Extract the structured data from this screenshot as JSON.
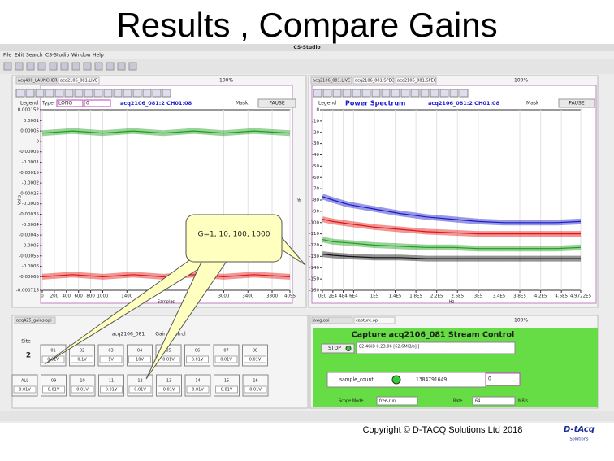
{
  "slide": {
    "title": "Results , Compare Gains",
    "copyright": "Copyright © D-TACQ Solutions Ltd 2018",
    "logo": "D-tAcq",
    "logo_sub": "Solutions"
  },
  "app": {
    "window_title": "CS-Studio",
    "menu": [
      "File",
      "Edit",
      "Search",
      "CS-Studio",
      "Window",
      "Help"
    ]
  },
  "callout": "G=1, 10, 100, 1000",
  "left_panel": {
    "tabs": [
      "acq400_LAUNCHER.opi",
      "acq2106_081.LIVE"
    ],
    "zoom": "100%",
    "legend": "Legend",
    "type_label": "Type",
    "type_value": "LONG",
    "input": "0",
    "channel": "acq2106_081:2 CH01:08",
    "mask": "Mask",
    "pause": "PAUSE",
    "chart": {
      "type": "line",
      "y_label": "Volts",
      "x_label": "Samples",
      "xlim": [
        0,
        4095
      ],
      "ylim": [
        -0.000715,
        0.000152
      ],
      "yticks": [
        0.000152,
        0.0001,
        5e-05,
        0,
        -5e-05,
        -0.0001,
        -0.00015,
        -0.0002,
        -0.00025,
        -0.0003,
        -0.00035,
        -0.0004,
        -0.00045,
        -0.0005,
        -0.00055,
        -0.0006,
        -0.00065,
        -0.000715
      ],
      "xticks": [
        0,
        200,
        400,
        600,
        800,
        1000,
        1400,
        3000,
        3400,
        3800,
        4095
      ],
      "x": [
        0,
        500,
        1000,
        1500,
        2000,
        2500,
        3000,
        3500,
        4095
      ],
      "series": [
        {
          "color": "#1c9e1c",
          "values": [
            4e-05,
            5e-05,
            4e-05,
            5e-05,
            4e-05,
            5e-05,
            4e-05,
            5e-05,
            4e-05
          ]
        },
        {
          "color": "#e01414",
          "values": [
            -0.00065,
            -0.00064,
            -0.00065,
            -0.00064,
            -0.00065,
            -0.00064,
            -0.00065,
            -0.00064,
            -0.00065
          ]
        }
      ]
    }
  },
  "right_panel": {
    "tabs": [
      "acq2106_081.LIVE",
      "acq2106_081.SPEC",
      "acq2106_081.SPEC"
    ],
    "zoom": "100%",
    "legend": "Legend",
    "title": "Power Spectrum",
    "channel": "acq2106_081:2 CH01:08",
    "mask": "Mask",
    "pause": "PAUSE",
    "chart": {
      "type": "line",
      "y_label": "dB",
      "x_label": "Hz",
      "xlim": [
        0,
        497220
      ],
      "ylim": [
        -160,
        0
      ],
      "yticks": [
        0,
        -10,
        -20,
        -30,
        -40,
        -50,
        -60,
        -70,
        -80,
        -90,
        -100,
        -110,
        -120,
        -130,
        -140,
        -150,
        -160
      ],
      "xticks": [
        {
          "value": 0,
          "label": "0E0"
        },
        {
          "value": 20000,
          "label": "2E4"
        },
        {
          "value": 40000,
          "label": "4E4"
        },
        {
          "value": 60000,
          "label": "6E4"
        },
        {
          "value": 100000,
          "label": "1E5"
        },
        {
          "value": 140000,
          "label": "1.4E5"
        },
        {
          "value": 180000,
          "label": "1.8E5"
        },
        {
          "value": 220000,
          "label": "2.2E5"
        },
        {
          "value": 260000,
          "label": "2.6E5"
        },
        {
          "value": 300000,
          "label": "3E5"
        },
        {
          "value": 340000,
          "label": "3.4E5"
        },
        {
          "value": 380000,
          "label": "3.8E5"
        },
        {
          "value": 420000,
          "label": "4.2E5"
        },
        {
          "value": 460000,
          "label": "4.6E5"
        },
        {
          "value": 497220,
          "label": "4.9722E5"
        }
      ],
      "x": [
        0,
        20000,
        50000,
        100000,
        150000,
        200000,
        250000,
        300000,
        350000,
        400000,
        450000,
        497220
      ],
      "series": [
        {
          "color": "#1a1ac8",
          "values": [
            -77,
            -80,
            -84,
            -88,
            -92,
            -95,
            -97,
            -99,
            -100,
            -100,
            -100,
            -99
          ]
        },
        {
          "color": "#e01414",
          "values": [
            -97,
            -99,
            -101,
            -104,
            -106,
            -108,
            -109,
            -110,
            -110,
            -110,
            -110,
            -110
          ]
        },
        {
          "color": "#1c9e1c",
          "values": [
            -115,
            -117,
            -118,
            -120,
            -121,
            -122,
            -122,
            -123,
            -123,
            -123,
            -123,
            -122
          ]
        },
        {
          "color": "#111111",
          "values": [
            -128,
            -129,
            -130,
            -131,
            -131,
            -132,
            -132,
            -132,
            -132,
            -132,
            -132,
            -132
          ]
        }
      ]
    }
  },
  "gain_panel": {
    "tab": "acq425_gains.opi",
    "device": "acq2106_081",
    "heading": "Gain Control",
    "site_label": "Site",
    "site": "2",
    "row1": [
      {
        "ch": "01",
        "gain": "0.01V"
      },
      {
        "ch": "02",
        "gain": "0.1V"
      },
      {
        "ch": "03",
        "gain": "1V"
      },
      {
        "ch": "04",
        "gain": "10V"
      },
      {
        "ch": "05",
        "gain": "0.01V"
      },
      {
        "ch": "06",
        "gain": "0.01V"
      },
      {
        "ch": "07",
        "gain": "0.01V"
      },
      {
        "ch": "08",
        "gain": "0.01V"
      }
    ],
    "row2": [
      {
        "ch": "ALL",
        "gain": "0.01V"
      },
      {
        "ch": "09",
        "gain": "0.01V"
      },
      {
        "ch": "10",
        "gain": "0.01V"
      },
      {
        "ch": "11",
        "gain": "0.01V"
      },
      {
        "ch": "12",
        "gain": "0.01V"
      },
      {
        "ch": "13",
        "gain": "0.01V"
      },
      {
        "ch": "14",
        "gain": "0.01V"
      },
      {
        "ch": "15",
        "gain": "0.01V"
      },
      {
        "ch": "16",
        "gain": "0.01V"
      }
    ]
  },
  "capture_panel": {
    "tabs": [
      "awg.opi",
      "capture.opi"
    ],
    "zoom": "100%",
    "title": "Capture acq2106_081 Stream  Control",
    "stop": "STOP",
    "status": "82.4GiB 0:23:06 [62.6MiB/s] ]",
    "sample_count_label": "sample_count",
    "sample_count": "1384791649",
    "input": "0",
    "scope_mode_label": "Scope Mode",
    "scope_mode": "free-run",
    "rate_label": "Rate",
    "rate": "64",
    "rate_unit": "MB/s"
  }
}
